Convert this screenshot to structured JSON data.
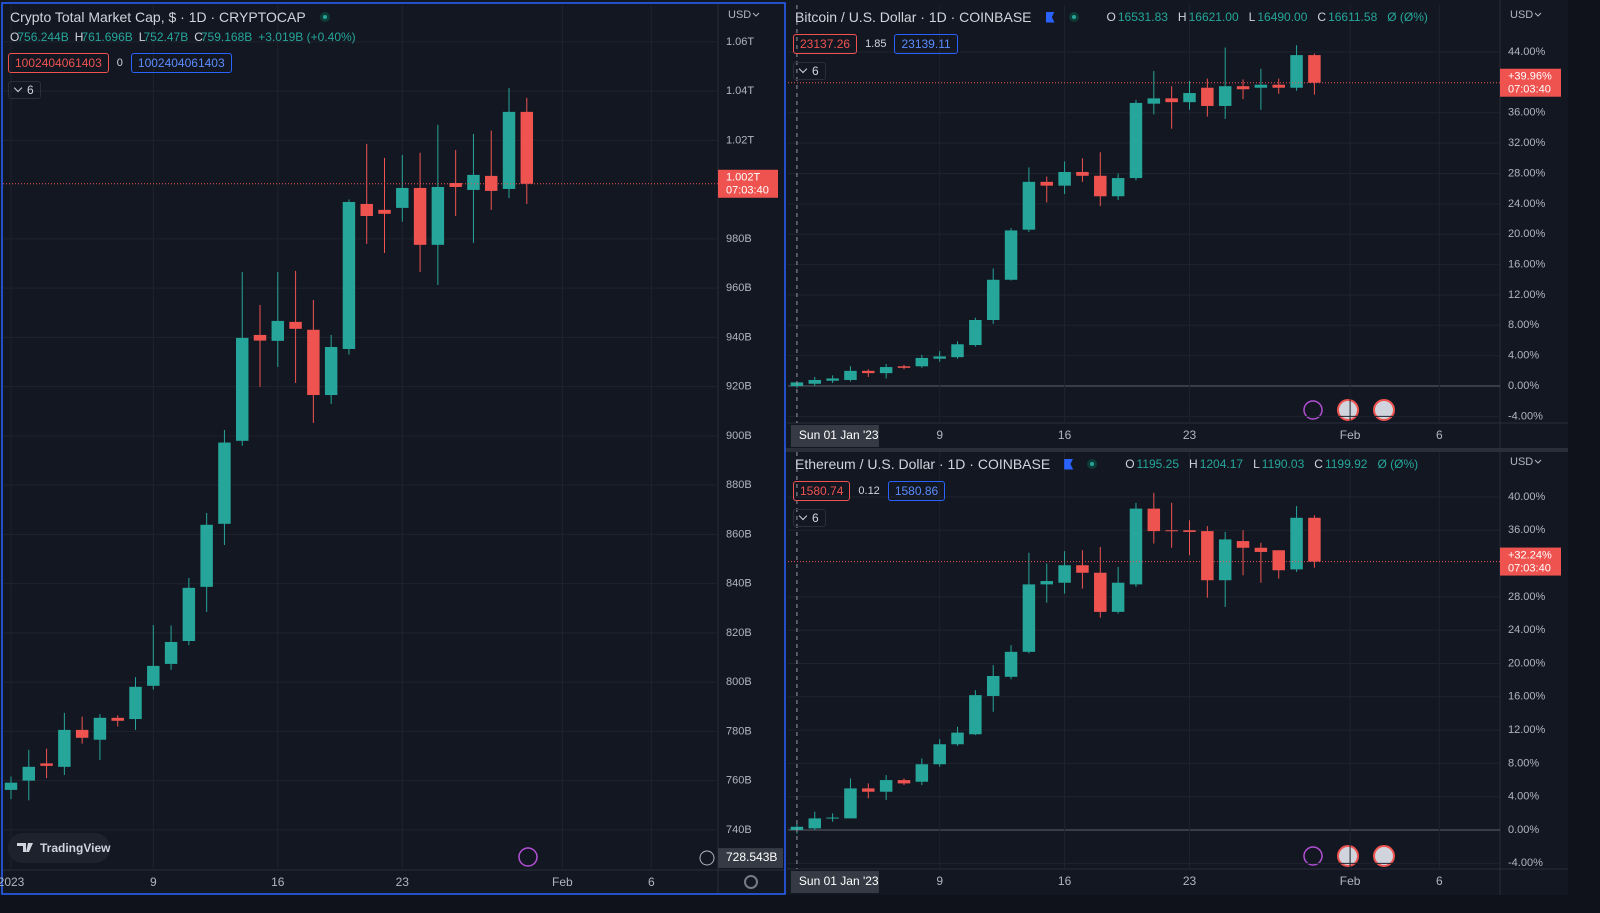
{
  "chart_data": [
    {
      "type": "candlestick",
      "title": "Crypto Total Market Cap, $ · 1D · CRYPTOCAP",
      "ohlc_legend": [
        {
          "key": "O",
          "label": "756.244B"
        },
        {
          "key": "H",
          "label": "761.696B"
        },
        {
          "key": "L",
          "label": "752.47B"
        },
        {
          "key": "C",
          "label": "759.168B"
        }
      ],
      "change": "+3.019B (+0.40%)",
      "indicator_values": [
        "1002404061403",
        "0",
        "1002404061403"
      ],
      "collapsed_count": 6,
      "currency": "USD",
      "x": [
        1,
        2,
        3,
        4,
        5,
        6,
        7,
        8,
        9,
        10,
        11,
        12,
        13,
        14,
        15,
        16,
        17,
        18,
        19,
        20,
        21,
        22,
        23,
        24,
        25,
        26,
        27,
        28,
        29,
        30
      ],
      "open": [
        756.244,
        760.0,
        767,
        765.6,
        780.6,
        776.6,
        785.5,
        785,
        798.5,
        807.4,
        816.7,
        838.7,
        864.3,
        898.0,
        941,
        938.6,
        946.3,
        943.1,
        916.6,
        935.3,
        994.2,
        991.8,
        992.6,
        1000.7,
        977.6,
        1002.7,
        999.9,
        1005.6,
        1000.3,
        1031.6
      ],
      "high": [
        761.696,
        772.5,
        773,
        787.5,
        786,
        787,
        786.5,
        802,
        823.2,
        823,
        842.3,
        868.7,
        902.4,
        966.6,
        953.2,
        966.6,
        967,
        955.2,
        941,
        996,
        1018.6,
        1012.9,
        1014.1,
        1015,
        1026.3,
        1016.1,
        1022.6,
        1024,
        1041.3,
        1037.3
      ],
      "low": [
        752.47,
        752,
        761,
        762.3,
        775,
        768.4,
        782,
        780.6,
        797,
        805,
        815,
        828.5,
        855.7,
        896,
        919.9,
        928,
        921.5,
        905.3,
        913,
        933,
        978,
        974.3,
        987,
        966.6,
        961.3,
        989.3,
        978.4,
        991.8,
        996.6,
        994.2
      ],
      "close": [
        759.168,
        765.6,
        766,
        780.6,
        777.4,
        785.5,
        784.3,
        798.1,
        806.6,
        816.3,
        838.3,
        863.9,
        897.3,
        939.8,
        938.7,
        946.7,
        943.5,
        916.6,
        936.1,
        995.0,
        989.3,
        990.2,
        1000.7,
        977.6,
        1001.1,
        1001.1,
        1006,
        999.5,
        1031.6,
        1002.4
      ],
      "up_color": "#26a69a",
      "down_color": "#ef5350",
      "xlim": [
        0.55,
        40.75
      ],
      "xticks": [
        {
          "value": 1,
          "label": "2023"
        },
        9,
        16,
        23,
        {
          "value": 32,
          "label": "Feb"
        },
        {
          "value": 37,
          "label": "6"
        }
      ],
      "ylim": [
        723.7,
        1075.0
      ],
      "yticks": [
        {
          "value": 740,
          "label": "740B"
        },
        {
          "value": 760,
          "label": "760B"
        },
        {
          "value": 780,
          "label": "780B"
        },
        {
          "value": 800,
          "label": "800B"
        },
        {
          "value": 820,
          "label": "820B"
        },
        {
          "value": 840,
          "label": "840B"
        },
        {
          "value": 860,
          "label": "860B"
        },
        {
          "value": 880,
          "label": "880B"
        },
        {
          "value": 900,
          "label": "900B"
        },
        {
          "value": 920,
          "label": "920B"
        },
        {
          "value": 940,
          "label": "940B"
        },
        {
          "value": 960,
          "label": "960B"
        },
        {
          "value": 980,
          "label": "980B"
        },
        {
          "value": 1020,
          "label": "1.02T"
        },
        {
          "value": 1040,
          "label": "1.04T"
        },
        {
          "value": 1060,
          "label": "1.06T"
        }
      ],
      "last_label": "1.002T",
      "countdown": "07:03:40",
      "crosshair_y": {
        "value": 728.543,
        "label": "728.543B"
      },
      "branding": "TradingView",
      "grid": true
    },
    {
      "type": "candlestick",
      "title": "Bitcoin / U.S. Dollar · 1D · COINBASE",
      "ohlc_legend": [
        {
          "key": "O",
          "label": "16531.83"
        },
        {
          "key": "H",
          "label": "16621.00"
        },
        {
          "key": "L",
          "label": "16490.00"
        },
        {
          "key": "C",
          "label": "16611.58"
        }
      ],
      "change": "Ø (Ø%)",
      "indicator_values": [
        "23137.26",
        "1.85",
        "23139.11"
      ],
      "collapsed_count": 6,
      "currency": "USD",
      "scale": "percent",
      "x": [
        1,
        2,
        3,
        4,
        5,
        6,
        7,
        8,
        9,
        10,
        11,
        12,
        13,
        14,
        15,
        16,
        17,
        18,
        19,
        20,
        21,
        22,
        23,
        24,
        25,
        26,
        27,
        28,
        29,
        30
      ],
      "open": [
        0,
        0.3,
        0.7,
        0.8,
        2.0,
        1.7,
        2.6,
        2.6,
        3.6,
        3.8,
        5.4,
        8.7,
        14.0,
        20.6,
        26.9,
        26.4,
        28.2,
        27.7,
        25.0,
        27.4,
        37.2,
        37.9,
        37.4,
        39.3,
        36.9,
        39.5,
        39.3,
        39.7,
        39.3,
        43.6
      ],
      "high": [
        0.54,
        1.2,
        1.4,
        2.6,
        2.2,
        2.9,
        2.8,
        4.1,
        4.6,
        5.9,
        9.0,
        15.5,
        20.8,
        28.8,
        27.6,
        29.6,
        30.0,
        30.8,
        28.0,
        37.7,
        41.5,
        39.5,
        40.2,
        40.5,
        44.6,
        40.4,
        41.8,
        40.5,
        44.9,
        43.8
      ],
      "low": [
        -0.25,
        0.0,
        0.4,
        0.6,
        1.2,
        1.0,
        2.2,
        2.4,
        3.2,
        3.6,
        5.2,
        8.2,
        13.9,
        20.3,
        24.2,
        25.3,
        26.9,
        23.7,
        24.5,
        27.1,
        35.8,
        33.9,
        36.4,
        35.5,
        35.2,
        37.8,
        36.4,
        38.5,
        38.9,
        38.4
      ],
      "close": [
        0.48,
        0.8,
        1.0,
        2.0,
        1.7,
        2.5,
        2.4,
        3.7,
        3.9,
        5.5,
        8.7,
        14.0,
        20.5,
        26.9,
        26.4,
        28.2,
        27.7,
        25.0,
        27.4,
        37.3,
        37.9,
        37.4,
        38.6,
        36.9,
        39.5,
        39.1,
        39.7,
        39.3,
        43.6,
        39.96
      ],
      "up_color": "#26a69a",
      "down_color": "#ef5350",
      "xlim": [
        0.5,
        40.4
      ],
      "xticks": [
        9,
        16,
        23,
        {
          "value": 32,
          "label": "Feb"
        },
        {
          "value": 37,
          "label": "6"
        }
      ],
      "ylim": [
        -4.87,
        50.2
      ],
      "yticks": [
        {
          "value": -4,
          "label": "-4.00%"
        },
        {
          "value": 0,
          "label": "0.00%"
        },
        {
          "value": 4,
          "label": "4.00%"
        },
        {
          "value": 8,
          "label": "8.00%"
        },
        {
          "value": 12,
          "label": "12.00%"
        },
        {
          "value": 16,
          "label": "16.00%"
        },
        {
          "value": 20,
          "label": "20.00%"
        },
        {
          "value": 24,
          "label": "24.00%"
        },
        {
          "value": 28,
          "label": "28.00%"
        },
        {
          "value": 32,
          "label": "32.00%"
        },
        {
          "value": 36,
          "label": "36.00%"
        },
        {
          "value": 44,
          "label": "44.00%"
        }
      ],
      "last_label": "+39.96%",
      "countdown": "07:03:40",
      "crosshair_x": {
        "value": 1,
        "label": "Sun 01 Jan '23"
      },
      "grid": true
    },
    {
      "type": "candlestick",
      "title": "Ethereum / U.S. Dollar · 1D · COINBASE",
      "ohlc_legend": [
        {
          "key": "O",
          "label": "1195.25"
        },
        {
          "key": "H",
          "label": "1204.17"
        },
        {
          "key": "L",
          "label": "1190.03"
        },
        {
          "key": "C",
          "label": "1199.92"
        }
      ],
      "change": "Ø (Ø%)",
      "indicator_values": [
        "1580.74",
        "0.12",
        "1580.86"
      ],
      "collapsed_count": 6,
      "currency": "USD",
      "scale": "percent",
      "x": [
        1,
        2,
        3,
        4,
        5,
        6,
        7,
        8,
        9,
        10,
        11,
        12,
        13,
        14,
        15,
        16,
        17,
        18,
        19,
        20,
        21,
        22,
        23,
        24,
        25,
        26,
        27,
        28,
        29,
        30
      ],
      "open": [
        0,
        0.2,
        1.4,
        1.4,
        5.0,
        4.6,
        6.0,
        5.8,
        7.9,
        10.3,
        11.5,
        16.1,
        18.4,
        21.4,
        29.5,
        29.7,
        31.8,
        30.9,
        26.2,
        29.5,
        38.6,
        36.0,
        36.0,
        35.9,
        30.0,
        34.7,
        33.9,
        33.6,
        31.3,
        37.5
      ],
      "high": [
        0.75,
        2.2,
        2.0,
        6.2,
        5.6,
        6.6,
        6.2,
        8.6,
        10.9,
        12.4,
        16.8,
        19.8,
        22.2,
        33.3,
        32.0,
        33.5,
        33.6,
        34.0,
        31.6,
        39.3,
        40.5,
        39.3,
        37.2,
        36.5,
        35.8,
        36.0,
        34.5,
        33.6,
        38.9,
        37.8
      ],
      "low": [
        -0.43,
        0.0,
        1.0,
        1.4,
        3.8,
        3.6,
        5.4,
        5.4,
        7.6,
        10.1,
        11.4,
        14.2,
        18.1,
        21.2,
        27.3,
        28.4,
        29.0,
        25.5,
        26.0,
        29.2,
        34.4,
        33.9,
        33.0,
        27.9,
        26.8,
        30.6,
        29.7,
        30.2,
        31.0,
        31.5
      ],
      "close": [
        0.39,
        1.4,
        1.5,
        5.0,
        4.6,
        6.0,
        5.6,
        7.9,
        10.3,
        11.7,
        16.2,
        18.5,
        21.4,
        29.5,
        29.9,
        31.8,
        30.9,
        26.2,
        29.7,
        38.6,
        35.9,
        35.9,
        35.8,
        30.0,
        34.9,
        33.9,
        33.4,
        31.2,
        37.5,
        32.24
      ],
      "up_color": "#26a69a",
      "down_color": "#ef5350",
      "xlim": [
        0.5,
        40.4
      ],
      "xticks": [
        9,
        16,
        23,
        {
          "value": 32,
          "label": "Feb"
        },
        {
          "value": 37,
          "label": "6"
        }
      ],
      "ylim": [
        -4.68,
        45.4
      ],
      "yticks": [
        {
          "value": -4,
          "label": "-4.00%"
        },
        {
          "value": 0,
          "label": "0.00%"
        },
        {
          "value": 4,
          "label": "4.00%"
        },
        {
          "value": 8,
          "label": "8.00%"
        },
        {
          "value": 12,
          "label": "12.00%"
        },
        {
          "value": 16,
          "label": "16.00%"
        },
        {
          "value": 20,
          "label": "20.00%"
        },
        {
          "value": 24,
          "label": "24.00%"
        },
        {
          "value": 28,
          "label": "28.00%"
        },
        {
          "value": 36,
          "label": "36.00%"
        },
        {
          "value": 40,
          "label": "40.00%"
        }
      ],
      "last_label": "+32.24%",
      "countdown": "07:03:40",
      "crosshair_x": {
        "value": 1,
        "label": "Sun 01 Jan '23"
      },
      "grid": true
    }
  ]
}
